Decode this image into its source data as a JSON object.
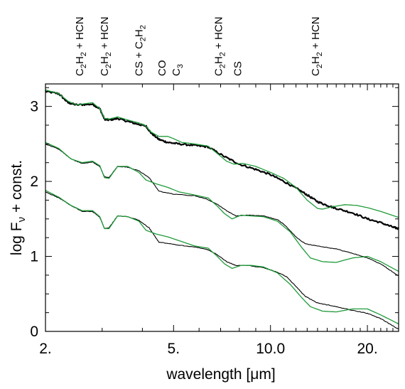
{
  "chart_data": {
    "type": "line",
    "title": "",
    "xlabel": "wavelength [μm]",
    "ylabel": "log F_ν + const.",
    "x_scale": "log",
    "xlim": [
      2.0,
      25.0
    ],
    "ylim": [
      0,
      3.3
    ],
    "x_ticks": [
      {
        "value": 2.0,
        "label": "2."
      },
      {
        "value": 5.0,
        "label": "5."
      },
      {
        "value": 10.0,
        "label": "10.0"
      },
      {
        "value": 20.0,
        "label": "20."
      }
    ],
    "y_ticks": [
      {
        "value": 0,
        "label": "0"
      },
      {
        "value": 1,
        "label": "1"
      },
      {
        "value": 2,
        "label": "2"
      },
      {
        "value": 3,
        "label": "3"
      }
    ],
    "molecular_bands": [
      {
        "x": 2.55,
        "label": "C2H2 + HCN"
      },
      {
        "x": 3.05,
        "label": "C2H2 + HCN"
      },
      {
        "x": 3.9,
        "label": "CS + C2H2"
      },
      {
        "x": 4.6,
        "label": "CO"
      },
      {
        "x": 5.1,
        "label": "C3"
      },
      {
        "x": 6.9,
        "label": "C2H2 + HCN"
      },
      {
        "x": 7.9,
        "label": "CS"
      },
      {
        "x": 13.8,
        "label": "C2H2 + HCN"
      }
    ],
    "series": [
      {
        "color": "#000000",
        "width": 2.2,
        "noise": 0.012,
        "points": [
          [
            2.0,
            3.2
          ],
          [
            2.2,
            3.17
          ],
          [
            2.35,
            3.05
          ],
          [
            2.5,
            3.02
          ],
          [
            2.8,
            3.03
          ],
          [
            2.95,
            2.97
          ],
          [
            3.05,
            2.83
          ],
          [
            3.15,
            2.82
          ],
          [
            3.35,
            2.84
          ],
          [
            3.6,
            2.8
          ],
          [
            3.9,
            2.76
          ],
          [
            4.1,
            2.74
          ],
          [
            4.25,
            2.65
          ],
          [
            4.5,
            2.56
          ],
          [
            4.8,
            2.52
          ],
          [
            5.2,
            2.5
          ],
          [
            5.8,
            2.48
          ],
          [
            6.4,
            2.46
          ],
          [
            7.2,
            2.33
          ],
          [
            8.0,
            2.23
          ],
          [
            9.0,
            2.16
          ],
          [
            10.0,
            2.09
          ],
          [
            11.0,
            2.0
          ],
          [
            12.0,
            1.91
          ],
          [
            13.0,
            1.82
          ],
          [
            14.0,
            1.73
          ],
          [
            15.0,
            1.68
          ],
          [
            16.0,
            1.64
          ],
          [
            18.0,
            1.58
          ],
          [
            20.0,
            1.5
          ],
          [
            22.0,
            1.45
          ],
          [
            24.0,
            1.39
          ],
          [
            25.0,
            1.37
          ]
        ]
      },
      {
        "color": "#1f9b3a",
        "width": 1.3,
        "noise": 0,
        "points": [
          [
            2.0,
            3.22
          ],
          [
            2.2,
            3.17
          ],
          [
            2.35,
            3.07
          ],
          [
            2.5,
            3.02
          ],
          [
            2.8,
            3.05
          ],
          [
            2.95,
            2.97
          ],
          [
            3.05,
            2.84
          ],
          [
            3.15,
            2.83
          ],
          [
            3.35,
            2.86
          ],
          [
            3.6,
            2.82
          ],
          [
            3.9,
            2.78
          ],
          [
            4.1,
            2.74
          ],
          [
            4.25,
            2.66
          ],
          [
            4.5,
            2.6
          ],
          [
            4.8,
            2.6
          ],
          [
            5.0,
            2.57
          ],
          [
            5.3,
            2.52
          ],
          [
            5.8,
            2.5
          ],
          [
            6.4,
            2.47
          ],
          [
            6.8,
            2.38
          ],
          [
            7.3,
            2.27
          ],
          [
            7.7,
            2.23
          ],
          [
            8.2,
            2.24
          ],
          [
            9.0,
            2.2
          ],
          [
            10.0,
            2.12
          ],
          [
            11.0,
            2.04
          ],
          [
            12.0,
            1.92
          ],
          [
            13.0,
            1.75
          ],
          [
            14.0,
            1.64
          ],
          [
            14.5,
            1.63
          ],
          [
            15.5,
            1.66
          ],
          [
            17.0,
            1.69
          ],
          [
            18.5,
            1.68
          ],
          [
            20.0,
            1.65
          ],
          [
            22.0,
            1.6
          ],
          [
            25.0,
            1.52
          ]
        ]
      },
      {
        "color": "#000000",
        "width": 1.1,
        "noise": 0.004,
        "points": [
          [
            2.0,
            2.5
          ],
          [
            2.2,
            2.43
          ],
          [
            2.4,
            2.3
          ],
          [
            2.6,
            2.24
          ],
          [
            2.8,
            2.26
          ],
          [
            2.95,
            2.2
          ],
          [
            3.05,
            2.06
          ],
          [
            3.15,
            2.05
          ],
          [
            3.35,
            2.2
          ],
          [
            3.6,
            2.19
          ],
          [
            3.9,
            2.14
          ],
          [
            4.2,
            2.05
          ],
          [
            4.5,
            1.87
          ],
          [
            5.0,
            1.83
          ],
          [
            5.8,
            1.81
          ],
          [
            6.3,
            1.77
          ],
          [
            6.8,
            1.7
          ],
          [
            7.3,
            1.61
          ],
          [
            7.8,
            1.54
          ],
          [
            8.5,
            1.55
          ],
          [
            9.5,
            1.54
          ],
          [
            10.5,
            1.49
          ],
          [
            11.0,
            1.43
          ],
          [
            12.0,
            1.26
          ],
          [
            12.8,
            1.17
          ],
          [
            14.0,
            1.14
          ],
          [
            16.0,
            1.1
          ],
          [
            18.0,
            1.04
          ],
          [
            20.0,
            0.98
          ],
          [
            22.0,
            0.9
          ],
          [
            25.0,
            0.74
          ]
        ]
      },
      {
        "color": "#1f9b3a",
        "width": 1.3,
        "noise": 0,
        "points": [
          [
            2.0,
            2.52
          ],
          [
            2.2,
            2.44
          ],
          [
            2.4,
            2.3
          ],
          [
            2.6,
            2.25
          ],
          [
            2.8,
            2.27
          ],
          [
            2.95,
            2.21
          ],
          [
            3.05,
            2.05
          ],
          [
            3.15,
            2.04
          ],
          [
            3.35,
            2.2
          ],
          [
            3.6,
            2.2
          ],
          [
            3.9,
            2.12
          ],
          [
            4.1,
            2.02
          ],
          [
            4.4,
            1.97
          ],
          [
            4.8,
            1.92
          ],
          [
            5.2,
            1.86
          ],
          [
            5.8,
            1.82
          ],
          [
            6.4,
            1.78
          ],
          [
            6.8,
            1.68
          ],
          [
            7.2,
            1.57
          ],
          [
            7.6,
            1.5
          ],
          [
            8.1,
            1.55
          ],
          [
            8.7,
            1.54
          ],
          [
            9.5,
            1.53
          ],
          [
            10.5,
            1.47
          ],
          [
            11.5,
            1.33
          ],
          [
            12.5,
            1.12
          ],
          [
            13.3,
            0.98
          ],
          [
            14.5,
            0.93
          ],
          [
            16.0,
            0.92
          ],
          [
            18.0,
            0.98
          ],
          [
            20.0,
            1.0
          ],
          [
            22.0,
            0.93
          ],
          [
            25.0,
            0.8
          ]
        ]
      },
      {
        "color": "#000000",
        "width": 1.1,
        "noise": 0.004,
        "points": [
          [
            2.0,
            1.86
          ],
          [
            2.2,
            1.78
          ],
          [
            2.4,
            1.68
          ],
          [
            2.6,
            1.6
          ],
          [
            2.8,
            1.6
          ],
          [
            2.95,
            1.52
          ],
          [
            3.05,
            1.37
          ],
          [
            3.15,
            1.38
          ],
          [
            3.35,
            1.54
          ],
          [
            3.6,
            1.53
          ],
          [
            3.9,
            1.48
          ],
          [
            4.2,
            1.38
          ],
          [
            4.5,
            1.19
          ],
          [
            5.0,
            1.16
          ],
          [
            5.7,
            1.13
          ],
          [
            6.3,
            1.1
          ],
          [
            6.8,
            1.03
          ],
          [
            7.3,
            0.93
          ],
          [
            7.8,
            0.88
          ],
          [
            8.5,
            0.88
          ],
          [
            9.5,
            0.85
          ],
          [
            10.5,
            0.79
          ],
          [
            11.2,
            0.73
          ],
          [
            12.0,
            0.6
          ],
          [
            12.8,
            0.47
          ],
          [
            14.0,
            0.38
          ],
          [
            16.0,
            0.33
          ],
          [
            18.0,
            0.28
          ],
          [
            20.0,
            0.24
          ],
          [
            22.0,
            0.17
          ],
          [
            25.0,
            0.03
          ]
        ]
      },
      {
        "color": "#1f9b3a",
        "width": 1.3,
        "noise": 0,
        "points": [
          [
            2.0,
            1.88
          ],
          [
            2.2,
            1.79
          ],
          [
            2.4,
            1.68
          ],
          [
            2.6,
            1.61
          ],
          [
            2.8,
            1.61
          ],
          [
            2.95,
            1.53
          ],
          [
            3.05,
            1.37
          ],
          [
            3.15,
            1.37
          ],
          [
            3.35,
            1.54
          ],
          [
            3.6,
            1.53
          ],
          [
            3.9,
            1.47
          ],
          [
            4.1,
            1.35
          ],
          [
            4.4,
            1.3
          ],
          [
            4.8,
            1.26
          ],
          [
            5.2,
            1.21
          ],
          [
            5.8,
            1.14
          ],
          [
            6.4,
            1.11
          ],
          [
            6.8,
            1.01
          ],
          [
            7.2,
            0.9
          ],
          [
            7.6,
            0.84
          ],
          [
            8.1,
            0.88
          ],
          [
            8.7,
            0.88
          ],
          [
            9.5,
            0.86
          ],
          [
            10.5,
            0.78
          ],
          [
            11.5,
            0.63
          ],
          [
            12.5,
            0.45
          ],
          [
            13.3,
            0.33
          ],
          [
            14.5,
            0.27
          ],
          [
            16.0,
            0.26
          ],
          [
            18.0,
            0.3
          ],
          [
            20.0,
            0.3
          ],
          [
            22.0,
            0.22
          ],
          [
            25.0,
            0.1
          ]
        ]
      }
    ]
  }
}
